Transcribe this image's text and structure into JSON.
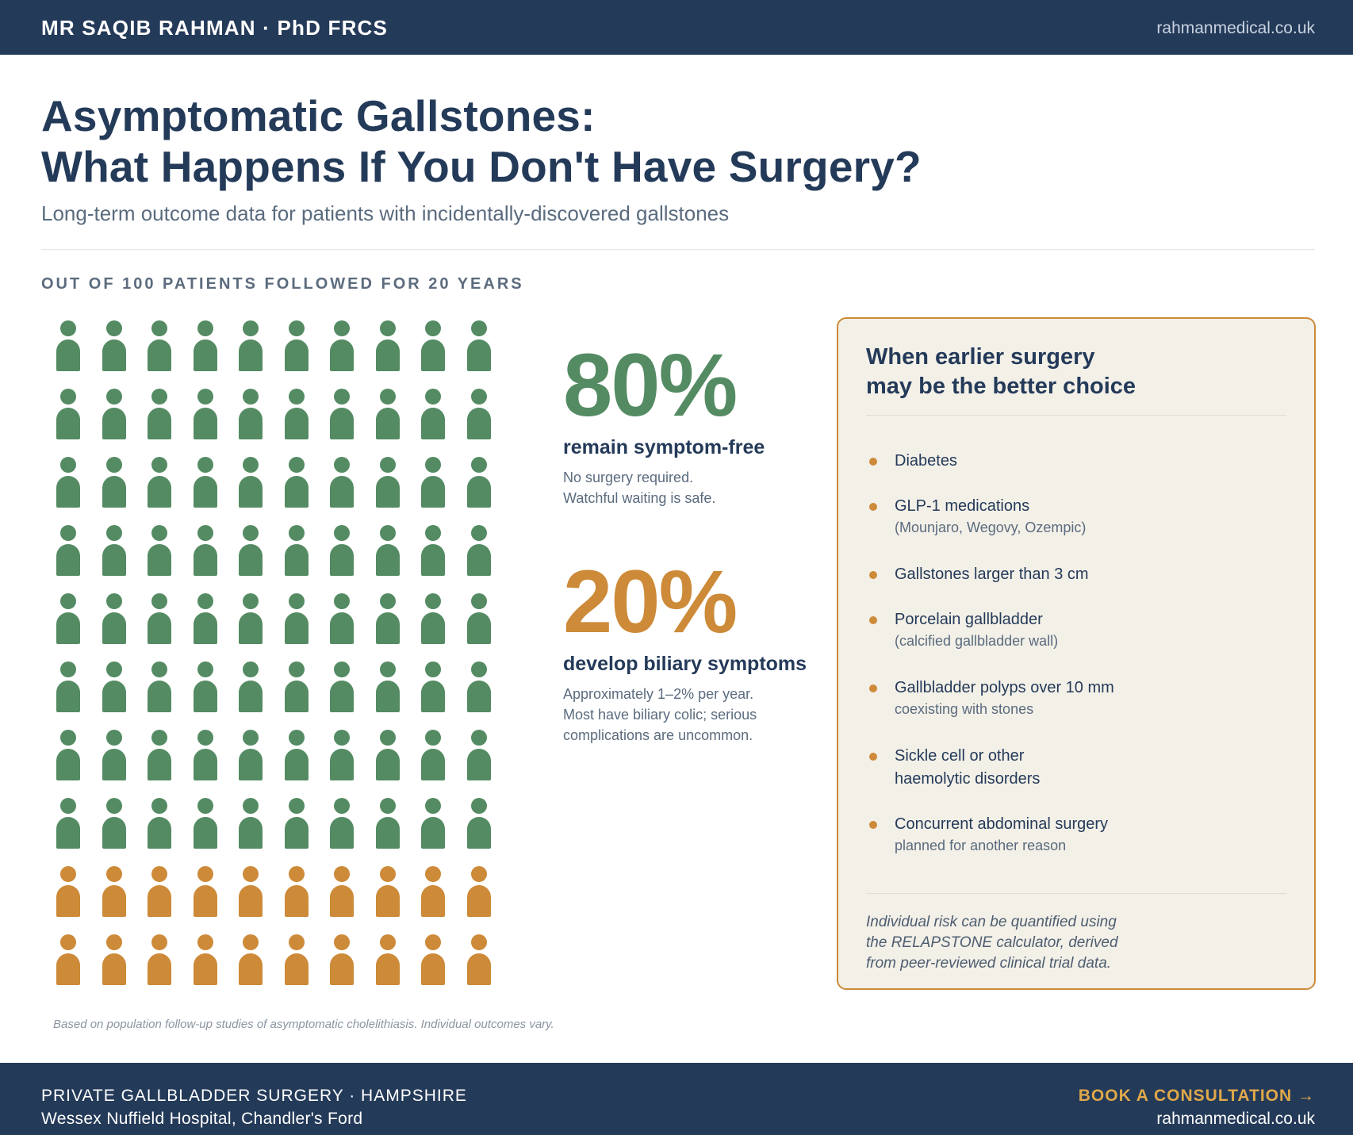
{
  "header": {
    "brand": "MR SAQIB RAHMAN · PhD FRCS",
    "website": "rahmanmedical.co.uk"
  },
  "title": {
    "line1": "Asymptomatic Gallstones:",
    "line2": "What Happens If You Don't Have Surgery?",
    "subtitle": "Long-term outcome data for patients with incidentally-discovered gallstones"
  },
  "section_label": "OUT OF 100 PATIENTS FOLLOWED FOR 20 YEARS",
  "icon_grid": {
    "total": 100,
    "columns": 10,
    "rows": 10,
    "symptom_free_count": 80,
    "symptomatic_count": 20,
    "icon": "person-icon",
    "colors": {
      "symptom_free": "#548b63",
      "symptomatic": "#cd8a38"
    }
  },
  "stats": [
    {
      "value": "80%",
      "label": "remain symptom-free",
      "lines": [
        "No surgery required.",
        "Watchful waiting is safe."
      ],
      "color": "#548b63"
    },
    {
      "value": "20%",
      "label": "develop biliary symptoms",
      "lines": [
        "Approximately 1–2% per year.",
        "Most have biliary colic; serious",
        "complications are uncommon."
      ],
      "color": "#cd8a38"
    }
  ],
  "panel": {
    "title_line1": "When earlier surgery",
    "title_line2": "may be the better choice",
    "items": [
      {
        "main": "Diabetes",
        "sub": ""
      },
      {
        "main": "GLP-1 medications",
        "sub": "(Mounjaro, Wegovy, Ozempic)"
      },
      {
        "main": "Gallstones larger than 3 cm",
        "sub": ""
      },
      {
        "main": "Porcelain gallbladder",
        "sub": "(calcified gallbladder wall)"
      },
      {
        "main": "Gallbladder polyps over 10 mm",
        "sub": "coexisting with stones"
      },
      {
        "main": "Sickle cell or other",
        "main2": "haemolytic disorders",
        "sub": ""
      },
      {
        "main": "Concurrent abdominal surgery",
        "sub": "planned for another reason"
      }
    ],
    "note_lines": [
      "Individual risk can be quantified using",
      "the RELAPSTONE calculator, derived",
      "from peer-reviewed clinical trial data."
    ]
  },
  "footnote": "Based on population follow-up studies of asymptomatic cholelithiasis. Individual outcomes vary.",
  "footer": {
    "line1": "PRIVATE GALLBLADDER SURGERY · HAMPSHIRE",
    "line2": "Wessex Nuffield Hospital, Chandler's Ford",
    "cta": "BOOK A CONSULTATION →",
    "website": "rahmanmedical.co.uk"
  }
}
